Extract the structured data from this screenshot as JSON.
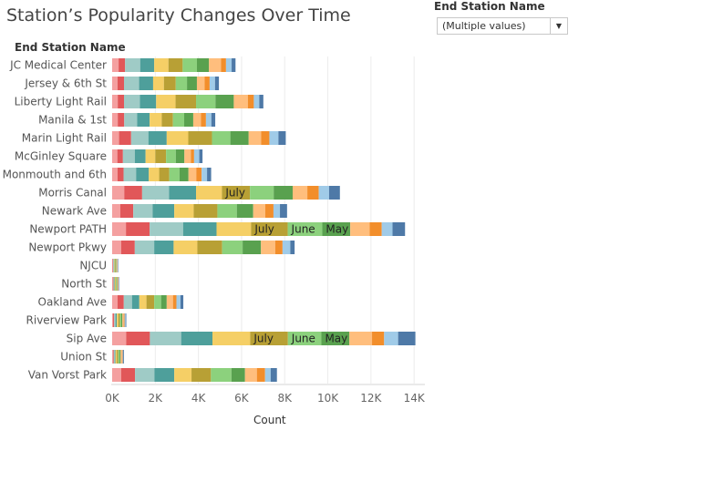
{
  "title": "Station’s Popularity Changes Over Time",
  "filter": {
    "label": "End Station Name",
    "value": "(Multiple values)"
  },
  "chart_data": {
    "type": "bar",
    "orientation": "horizontal",
    "stacked": true,
    "row_header": "End Station Name",
    "xlabel": "Count",
    "xlim": [
      0,
      14500
    ],
    "x_ticks": [
      "0K",
      "2K",
      "4K",
      "6K",
      "8K",
      "10K",
      "12K",
      "14K"
    ],
    "x_tick_values": [
      0,
      2000,
      4000,
      6000,
      8000,
      10000,
      12000,
      14000
    ],
    "grid": true,
    "categories": [
      "JC Medical Center",
      "Jersey & 6th St",
      "Liberty Light Rail",
      "Manila & 1st",
      "Marin Light Rail",
      "McGinley Square",
      "Monmouth and 6th",
      "Morris Canal",
      "Newark Ave",
      "Newport PATH",
      "Newport Pkwy",
      "NJCU",
      "North St",
      "Oakland Ave",
      "Riverview Park",
      "Sip Ave",
      "Union St",
      "Van Vorst Park"
    ],
    "segment_colors": [
      "#f4a0a0",
      "#e15759",
      "#9fcbc6",
      "#4e9f9b",
      "#f5cf66",
      "#b8a035",
      "#8cd17d",
      "#59a14f",
      "#ffbe7d",
      "#f28e2b",
      "#a0cbe8",
      "#4e79a7"
    ],
    "series": [
      {
        "values": [
          300,
          250,
          260,
          260,
          320,
          240,
          250,
          560,
          380,
          640,
          420,
          25,
          30,
          250,
          45,
          650,
          35,
          420
        ]
      },
      {
        "values": [
          300,
          300,
          290,
          300,
          560,
          260,
          280,
          830,
          600,
          1100,
          630,
          25,
          30,
          290,
          50,
          1100,
          40,
          640
        ]
      },
      {
        "values": [
          700,
          700,
          740,
          600,
          800,
          550,
          580,
          1250,
          900,
          1550,
          900,
          25,
          30,
          380,
          60,
          1450,
          40,
          900
        ]
      },
      {
        "values": [
          650,
          650,
          750,
          580,
          850,
          500,
          590,
          1250,
          1000,
          1550,
          900,
          25,
          30,
          340,
          60,
          1450,
          40,
          920
        ]
      },
      {
        "values": [
          660,
          500,
          900,
          560,
          1000,
          450,
          480,
          1200,
          900,
          1600,
          1100,
          25,
          30,
          330,
          70,
          1750,
          60,
          800
        ]
      },
      {
        "values": [
          660,
          550,
          950,
          520,
          1100,
          500,
          470,
          1300,
          1100,
          1700,
          1150,
          25,
          30,
          360,
          70,
          1750,
          70,
          900
        ]
      },
      {
        "values": [
          660,
          520,
          900,
          520,
          850,
          450,
          470,
          1100,
          900,
          1600,
          950,
          25,
          30,
          320,
          60,
          1550,
          60,
          950
        ]
      },
      {
        "values": [
          560,
          460,
          850,
          420,
          850,
          400,
          420,
          880,
          760,
          1300,
          850,
          25,
          30,
          260,
          60,
          1300,
          50,
          630
        ]
      },
      {
        "values": [
          560,
          360,
          650,
          360,
          580,
          300,
          360,
          680,
          560,
          900,
          660,
          25,
          30,
          290,
          60,
          1050,
          60,
          550
        ]
      },
      {
        "values": [
          230,
          230,
          280,
          230,
          380,
          150,
          250,
          530,
          380,
          560,
          340,
          20,
          20,
          160,
          40,
          560,
          30,
          380
        ]
      },
      {
        "values": [
          260,
          250,
          250,
          250,
          420,
          240,
          250,
          480,
          300,
          500,
          360,
          20,
          20,
          190,
          45,
          650,
          30,
          260
        ]
      },
      {
        "values": [
          180,
          180,
          190,
          180,
          340,
          150,
          190,
          500,
          330,
          580,
          200,
          20,
          20,
          130,
          35,
          800,
          35,
          290
        ]
      }
    ],
    "segment_labels": [
      {
        "bar": "Morris Canal",
        "segment": 5,
        "text": "July"
      },
      {
        "bar": "Newport PATH",
        "segment": 5,
        "text": "July"
      },
      {
        "bar": "Newport PATH",
        "segment": 6,
        "text": "June"
      },
      {
        "bar": "Newport PATH",
        "segment": 7,
        "text": "May"
      },
      {
        "bar": "Sip Ave",
        "segment": 5,
        "text": "July"
      },
      {
        "bar": "Sip Ave",
        "segment": 6,
        "text": "June"
      },
      {
        "bar": "Sip Ave",
        "segment": 7,
        "text": "May"
      }
    ]
  }
}
